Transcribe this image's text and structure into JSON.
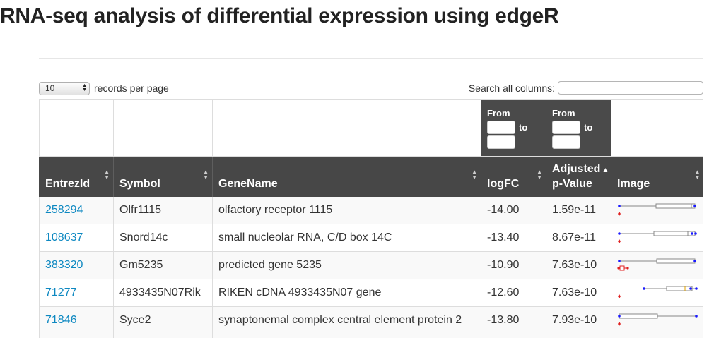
{
  "page": {
    "title": "RNA-seq analysis of differential expression using edgeR"
  },
  "length_control": {
    "value": "10",
    "label": "records per page"
  },
  "search": {
    "label": "Search all columns:",
    "value": "",
    "placeholder": ""
  },
  "filters": {
    "logFC": {
      "from_label": "From",
      "to_label": "to"
    },
    "adj_pvalue": {
      "from_label": "From",
      "to_label": "to"
    }
  },
  "columns": [
    {
      "key": "entrez",
      "label": "EntrezId"
    },
    {
      "key": "symbol",
      "label": "Symbol"
    },
    {
      "key": "genename",
      "label": "GeneName"
    },
    {
      "key": "logfc",
      "label": "logFC"
    },
    {
      "key": "adjp",
      "label_line1": "Adjusted",
      "label_line2": "p-Value",
      "sorted": "ascending"
    },
    {
      "key": "image",
      "label": "Image"
    }
  ],
  "rows": [
    {
      "entrez": "258294",
      "symbol": "Olfr1115",
      "genename": "olfactory receptor 1115",
      "logfc": "-14.00",
      "adjp": "1.59e-11"
    },
    {
      "entrez": "108637",
      "symbol": "Snord14c",
      "genename": "small nucleolar RNA, C/D box 14C",
      "logfc": "-13.40",
      "adjp": "8.67e-11"
    },
    {
      "entrez": "383320",
      "symbol": "Gm5235",
      "genename": "predicted gene 5235",
      "logfc": "-10.90",
      "adjp": "7.63e-10"
    },
    {
      "entrez": "71277",
      "symbol": "4933435N07Rik",
      "genename": "RIKEN cDNA 4933435N07 gene",
      "logfc": "-12.60",
      "adjp": "7.63e-10"
    },
    {
      "entrez": "71846",
      "symbol": "Syce2",
      "genename": "synaptonemal complex central element protein 2",
      "logfc": "-13.80",
      "adjp": "7.93e-10"
    }
  ],
  "colors": {
    "header_bg": "#474747",
    "link": "#0d88c1",
    "group_blue": "#1a1aff",
    "group_red": "#e02020"
  },
  "icons": {
    "sort": "sort-both-icon",
    "sort_active": "sort-ascending-icon",
    "select": "select-arrows-icon"
  }
}
